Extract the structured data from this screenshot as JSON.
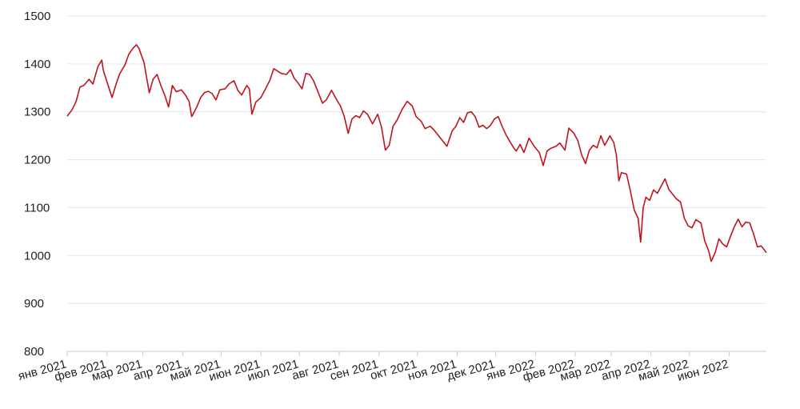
{
  "chart_data": {
    "type": "line",
    "title": "",
    "xlabel": "",
    "ylabel": "",
    "ylim": [
      800,
      1500
    ],
    "y_ticks": [
      800,
      900,
      1000,
      1100,
      1200,
      1300,
      1400,
      1500
    ],
    "grid": "horizontal",
    "x_tick_labels": [
      "янв 2021",
      "фев 2021",
      "мар 2021",
      "апр 2021",
      "май 2021",
      "июн 2021",
      "июл 2021",
      "авг 2021",
      "сен 2021",
      "окт 2021",
      "ноя 2021",
      "дек 2021",
      "янв 2022",
      "фев 2022",
      "мар 2022",
      "апр 2022",
      "май 2022",
      "июн 2022"
    ],
    "x_tick_dates": [
      "2021-01-01",
      "2021-02-01",
      "2021-03-01",
      "2021-04-01",
      "2021-05-01",
      "2021-06-01",
      "2021-07-01",
      "2021-08-01",
      "2021-09-01",
      "2021-10-01",
      "2021-11-01",
      "2021-12-01",
      "2022-01-01",
      "2022-02-01",
      "2022-03-01",
      "2022-04-01",
      "2022-05-01",
      "2022-06-01"
    ],
    "x_range": [
      "2021-01-01",
      "2022-06-30"
    ],
    "series": [
      {
        "color": "#c0141c",
        "points": [
          [
            "2021-01-01",
            1291
          ],
          [
            "2021-01-05",
            1305
          ],
          [
            "2021-01-08",
            1322
          ],
          [
            "2021-01-11",
            1352
          ],
          [
            "2021-01-14",
            1355
          ],
          [
            "2021-01-18",
            1368
          ],
          [
            "2021-01-21",
            1358
          ],
          [
            "2021-01-25",
            1395
          ],
          [
            "2021-01-28",
            1408
          ],
          [
            "2021-01-29",
            1388
          ],
          [
            "2021-02-03",
            1346
          ],
          [
            "2021-02-05",
            1330
          ],
          [
            "2021-02-08",
            1357
          ],
          [
            "2021-02-11",
            1380
          ],
          [
            "2021-02-15",
            1398
          ],
          [
            "2021-02-18",
            1420
          ],
          [
            "2021-02-21",
            1432
          ],
          [
            "2021-02-24",
            1440
          ],
          [
            "2021-02-26",
            1432
          ],
          [
            "2021-03-02",
            1402
          ],
          [
            "2021-03-04",
            1370
          ],
          [
            "2021-03-06",
            1340
          ],
          [
            "2021-03-09",
            1368
          ],
          [
            "2021-03-12",
            1378
          ],
          [
            "2021-03-15",
            1355
          ],
          [
            "2021-03-18",
            1335
          ],
          [
            "2021-03-21",
            1310
          ],
          [
            "2021-03-24",
            1355
          ],
          [
            "2021-03-27",
            1342
          ],
          [
            "2021-03-31",
            1346
          ],
          [
            "2021-04-03",
            1336
          ],
          [
            "2021-04-06",
            1322
          ],
          [
            "2021-04-08",
            1290
          ],
          [
            "2021-04-12",
            1310
          ],
          [
            "2021-04-15",
            1330
          ],
          [
            "2021-04-18",
            1340
          ],
          [
            "2021-04-21",
            1343
          ],
          [
            "2021-04-24",
            1338
          ],
          [
            "2021-04-27",
            1325
          ],
          [
            "2021-04-30",
            1346
          ],
          [
            "2021-05-04",
            1348
          ],
          [
            "2021-05-07",
            1358
          ],
          [
            "2021-05-11",
            1365
          ],
          [
            "2021-05-14",
            1345
          ],
          [
            "2021-05-17",
            1335
          ],
          [
            "2021-05-21",
            1355
          ],
          [
            "2021-05-23",
            1348
          ],
          [
            "2021-05-25",
            1295
          ],
          [
            "2021-05-28",
            1320
          ],
          [
            "2021-06-01",
            1330
          ],
          [
            "2021-06-04",
            1345
          ],
          [
            "2021-06-08",
            1366
          ],
          [
            "2021-06-11",
            1390
          ],
          [
            "2021-06-14",
            1385
          ],
          [
            "2021-06-17",
            1380
          ],
          [
            "2021-06-21",
            1378
          ],
          [
            "2021-06-24",
            1388
          ],
          [
            "2021-06-27",
            1370
          ],
          [
            "2021-06-30",
            1360
          ],
          [
            "2021-07-03",
            1348
          ],
          [
            "2021-07-06",
            1380
          ],
          [
            "2021-07-09",
            1378
          ],
          [
            "2021-07-12",
            1365
          ],
          [
            "2021-07-15",
            1345
          ],
          [
            "2021-07-19",
            1318
          ],
          [
            "2021-07-22",
            1325
          ],
          [
            "2021-07-26",
            1345
          ],
          [
            "2021-07-29",
            1330
          ],
          [
            "2021-08-02",
            1312
          ],
          [
            "2021-08-05",
            1290
          ],
          [
            "2021-08-08",
            1255
          ],
          [
            "2021-08-11",
            1285
          ],
          [
            "2021-08-14",
            1292
          ],
          [
            "2021-08-17",
            1288
          ],
          [
            "2021-08-20",
            1302
          ],
          [
            "2021-08-23",
            1295
          ],
          [
            "2021-08-27",
            1275
          ],
          [
            "2021-08-31",
            1295
          ],
          [
            "2021-09-03",
            1268
          ],
          [
            "2021-09-06",
            1220
          ],
          [
            "2021-09-09",
            1230
          ],
          [
            "2021-09-12",
            1270
          ],
          [
            "2021-09-15",
            1282
          ],
          [
            "2021-09-19",
            1305
          ],
          [
            "2021-09-23",
            1322
          ],
          [
            "2021-09-27",
            1312
          ],
          [
            "2021-09-30",
            1290
          ],
          [
            "2021-10-04",
            1280
          ],
          [
            "2021-10-07",
            1265
          ],
          [
            "2021-10-11",
            1270
          ],
          [
            "2021-10-14",
            1262
          ],
          [
            "2021-10-18",
            1248
          ],
          [
            "2021-10-21",
            1238
          ],
          [
            "2021-10-24",
            1228
          ],
          [
            "2021-10-28",
            1260
          ],
          [
            "2021-10-31",
            1270
          ],
          [
            "2021-11-03",
            1288
          ],
          [
            "2021-11-06",
            1278
          ],
          [
            "2021-11-09",
            1298
          ],
          [
            "2021-11-12",
            1300
          ],
          [
            "2021-11-15",
            1290
          ],
          [
            "2021-11-18",
            1268
          ],
          [
            "2021-11-21",
            1272
          ],
          [
            "2021-11-24",
            1265
          ],
          [
            "2021-11-27",
            1272
          ],
          [
            "2021-11-30",
            1285
          ],
          [
            "2021-12-03",
            1290
          ],
          [
            "2021-12-06",
            1270
          ],
          [
            "2021-12-09",
            1252
          ],
          [
            "2021-12-12",
            1238
          ],
          [
            "2021-12-15",
            1225
          ],
          [
            "2021-12-17",
            1218
          ],
          [
            "2021-12-20",
            1232
          ],
          [
            "2021-12-23",
            1215
          ],
          [
            "2021-12-27",
            1245
          ],
          [
            "2021-12-31",
            1228
          ],
          [
            "2022-01-04",
            1215
          ],
          [
            "2022-01-07",
            1188
          ],
          [
            "2022-01-10",
            1218
          ],
          [
            "2022-01-13",
            1224
          ],
          [
            "2022-01-17",
            1228
          ],
          [
            "2022-01-20",
            1235
          ],
          [
            "2022-01-24",
            1220
          ],
          [
            "2022-01-27",
            1266
          ],
          [
            "2022-01-31",
            1255
          ],
          [
            "2022-02-03",
            1240
          ],
          [
            "2022-02-06",
            1210
          ],
          [
            "2022-02-09",
            1192
          ],
          [
            "2022-02-12",
            1220
          ],
          [
            "2022-02-15",
            1230
          ],
          [
            "2022-02-18",
            1225
          ],
          [
            "2022-02-21",
            1250
          ],
          [
            "2022-02-24",
            1230
          ],
          [
            "2022-02-28",
            1250
          ],
          [
            "2022-03-03",
            1236
          ],
          [
            "2022-03-05",
            1210
          ],
          [
            "2022-03-07",
            1156
          ],
          [
            "2022-03-09",
            1173
          ],
          [
            "2022-03-13",
            1170
          ],
          [
            "2022-03-16",
            1135
          ],
          [
            "2022-03-19",
            1095
          ],
          [
            "2022-03-22",
            1078
          ],
          [
            "2022-03-24",
            1028
          ],
          [
            "2022-03-26",
            1100
          ],
          [
            "2022-03-28",
            1122
          ],
          [
            "2022-03-31",
            1115
          ],
          [
            "2022-04-03",
            1137
          ],
          [
            "2022-04-06",
            1130
          ],
          [
            "2022-04-09",
            1145
          ],
          [
            "2022-04-12",
            1160
          ],
          [
            "2022-04-15",
            1138
          ],
          [
            "2022-04-18",
            1128
          ],
          [
            "2022-04-21",
            1118
          ],
          [
            "2022-04-24",
            1112
          ],
          [
            "2022-04-27",
            1078
          ],
          [
            "2022-04-30",
            1062
          ],
          [
            "2022-05-03",
            1058
          ],
          [
            "2022-05-06",
            1075
          ],
          [
            "2022-05-10",
            1068
          ],
          [
            "2022-05-13",
            1030
          ],
          [
            "2022-05-16",
            1010
          ],
          [
            "2022-05-18",
            988
          ],
          [
            "2022-05-21",
            1006
          ],
          [
            "2022-05-24",
            1035
          ],
          [
            "2022-05-27",
            1024
          ],
          [
            "2022-05-30",
            1018
          ],
          [
            "2022-06-02",
            1040
          ],
          [
            "2022-06-05",
            1060
          ],
          [
            "2022-06-08",
            1076
          ],
          [
            "2022-06-11",
            1060
          ],
          [
            "2022-06-14",
            1070
          ],
          [
            "2022-06-17",
            1068
          ],
          [
            "2022-06-20",
            1045
          ],
          [
            "2022-06-23",
            1018
          ],
          [
            "2022-06-26",
            1020
          ],
          [
            "2022-06-30",
            1006
          ]
        ]
      }
    ]
  }
}
